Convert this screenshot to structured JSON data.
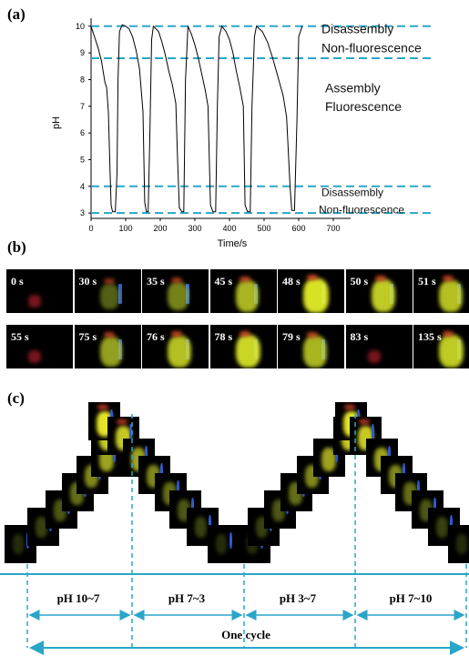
{
  "panel_a_label": "(a)",
  "panel_b_label": "(b)",
  "panel_c_label": "(c)",
  "chart_data": {
    "type": "line",
    "xlabel": "Time/s",
    "ylabel": "pH",
    "xlim": [
      0,
      750
    ],
    "ylim": [
      2.8,
      10.3
    ],
    "xticks": [
      "0",
      "100",
      "200",
      "300",
      "400",
      "500",
      "600",
      "700"
    ],
    "yticks": [
      "3",
      "4",
      "5",
      "6",
      "7",
      "8",
      "9",
      "10"
    ],
    "series": [
      {
        "values": [
          [
            0,
            10
          ],
          [
            10,
            9.6
          ],
          [
            20,
            9.2
          ],
          [
            30,
            8.7
          ],
          [
            40,
            7.9
          ],
          [
            45,
            7.7
          ],
          [
            50,
            6.8
          ],
          [
            55,
            4.5
          ],
          [
            58,
            3.3
          ],
          [
            62,
            3.05
          ],
          [
            70,
            3.05
          ],
          [
            75,
            4.5
          ],
          [
            78,
            8
          ],
          [
            82,
            9.8
          ],
          [
            90,
            10.05
          ],
          [
            100,
            10
          ],
          [
            110,
            9.9
          ],
          [
            120,
            9.6
          ],
          [
            130,
            9.1
          ],
          [
            140,
            8.4
          ],
          [
            145,
            7.6
          ],
          [
            150,
            6.8
          ],
          [
            155,
            3.4
          ],
          [
            160,
            3.05
          ],
          [
            165,
            3.05
          ],
          [
            170,
            6
          ],
          [
            175,
            9.5
          ],
          [
            180,
            10
          ],
          [
            195,
            9.8
          ],
          [
            205,
            9.4
          ],
          [
            215,
            8.9
          ],
          [
            225,
            8.3
          ],
          [
            235,
            7.8
          ],
          [
            245,
            7.1
          ],
          [
            250,
            5
          ],
          [
            255,
            3.2
          ],
          [
            262,
            3.05
          ],
          [
            268,
            3.05
          ],
          [
            273,
            8
          ],
          [
            280,
            10
          ],
          [
            290,
            9.7
          ],
          [
            300,
            9.3
          ],
          [
            310,
            8.8
          ],
          [
            320,
            8.2
          ],
          [
            330,
            7.6
          ],
          [
            338,
            7
          ],
          [
            345,
            3.3
          ],
          [
            352,
            3.05
          ],
          [
            360,
            3.05
          ],
          [
            365,
            7
          ],
          [
            370,
            9.6
          ],
          [
            378,
            10
          ],
          [
            390,
            9.8
          ],
          [
            400,
            9.5
          ],
          [
            410,
            9.0
          ],
          [
            420,
            8.3
          ],
          [
            430,
            7.7
          ],
          [
            440,
            7
          ],
          [
            445,
            3.3
          ],
          [
            452,
            3.05
          ],
          [
            460,
            3.05
          ],
          [
            465,
            7
          ],
          [
            472,
            9.6
          ],
          [
            478,
            10
          ],
          [
            495,
            9.8
          ],
          [
            510,
            9.4
          ],
          [
            525,
            8.8
          ],
          [
            540,
            8.1
          ],
          [
            555,
            7.4
          ],
          [
            565,
            6.6
          ],
          [
            575,
            4
          ],
          [
            580,
            3.1
          ],
          [
            588,
            3.1
          ],
          [
            595,
            6.5
          ],
          [
            600,
            9.6
          ],
          [
            610,
            10
          ]
        ]
      }
    ],
    "reference_lines": [
      10,
      8.8,
      4,
      3
    ],
    "annotations": [
      {
        "text": "Disassembly",
        "pH": 9.9
      },
      {
        "text": "Non-fluorescence",
        "pH": 9.2
      },
      {
        "text": "Assembly",
        "pH": 7.7
      },
      {
        "text": "Fluorescence",
        "pH": 7.0
      },
      {
        "text": "Disassembly",
        "pH": 3.8
      },
      {
        "text": "Non-fluorescence",
        "pH": 3.15
      }
    ]
  },
  "frames_row1": [
    {
      "label": "0 s",
      "brightness": 0.1
    },
    {
      "label": "30 s",
      "brightness": 0.3
    },
    {
      "label": "35 s",
      "brightness": 0.5
    },
    {
      "label": "45 s",
      "brightness": 0.75
    },
    {
      "label": "48 s",
      "brightness": 0.95
    },
    {
      "label": "50 s",
      "brightness": 0.85
    },
    {
      "label": "51 s",
      "brightness": 0.8
    }
  ],
  "frames_row2": [
    {
      "label": "55 s",
      "brightness": 0.1
    },
    {
      "label": "75 s",
      "brightness": 0.65
    },
    {
      "label": "76 s",
      "brightness": 0.8
    },
    {
      "label": "78 s",
      "brightness": 0.9
    },
    {
      "label": "79 s",
      "brightness": 0.75
    },
    {
      "label": "83 s",
      "brightness": 0.05
    },
    {
      "label": "135 s",
      "brightness": 0.85
    }
  ],
  "ranges": [
    "pH 10~7",
    "pH 7~3",
    "pH 3~7",
    "pH 7~10"
  ],
  "cycle_label": "One cycle",
  "colors": {
    "dashed": "#2aa6c8",
    "arrow": "#2aa6c8",
    "curve": "#000000"
  }
}
